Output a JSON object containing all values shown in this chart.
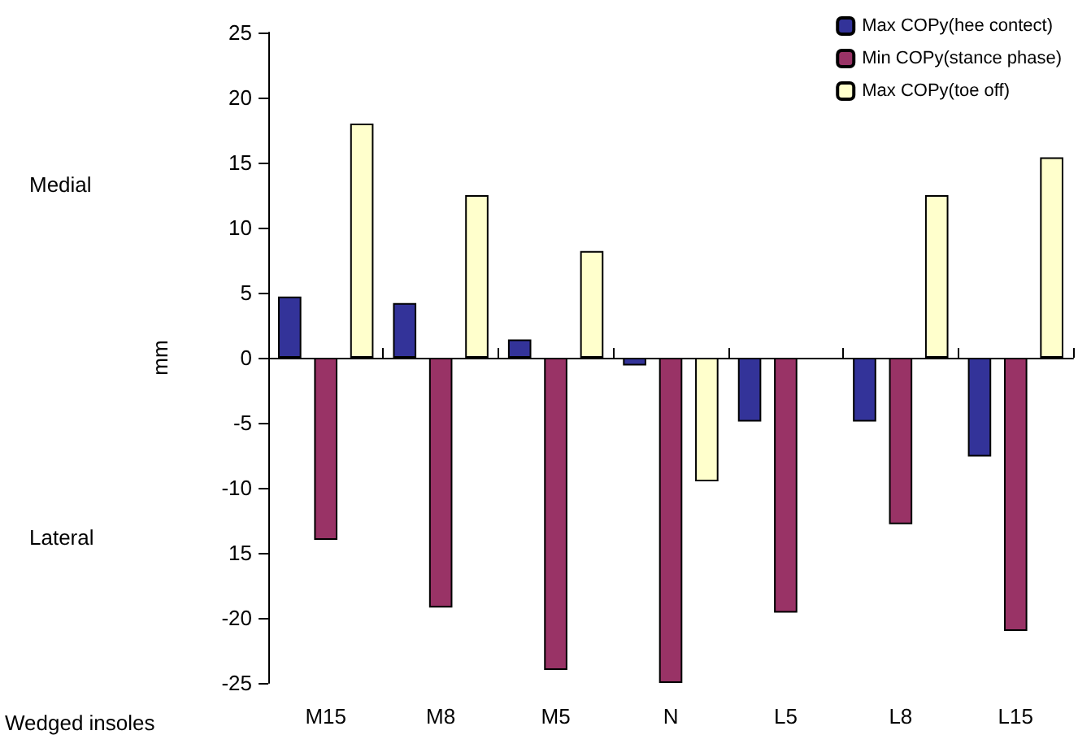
{
  "chart_data": {
    "type": "bar",
    "xlabel": "Wedged insoles",
    "ylabel": "mm",
    "annotations": [
      "Medial",
      "Lateral"
    ],
    "categories": [
      "M15",
      "M8",
      "M5",
      "N",
      "L5",
      "L8",
      "L15"
    ],
    "series": [
      {
        "name": "Max COPy(hee contect)",
        "color": "#333399",
        "values": [
          4.7,
          4.2,
          1.4,
          -0.6,
          -4.9,
          -4.9,
          -7.6
        ]
      },
      {
        "name": "Min COPy(stance phase)",
        "color": "#993366",
        "values": [
          -14,
          -19.2,
          -24,
          -25,
          -19.6,
          -12.8,
          -21
        ]
      },
      {
        "name": "Max COPy(toe off)",
        "color": "#ffffcc",
        "values": [
          18,
          12.5,
          8.2,
          -9.5,
          null,
          12.5,
          15.4
        ]
      }
    ],
    "ylim": [
      -25,
      25
    ],
    "yticks": [
      -25,
      -20,
      {
        "value": -15,
        "label": "15"
      },
      -10,
      -5,
      0,
      5,
      10,
      15,
      20,
      25
    ],
    "legend": "top right"
  }
}
